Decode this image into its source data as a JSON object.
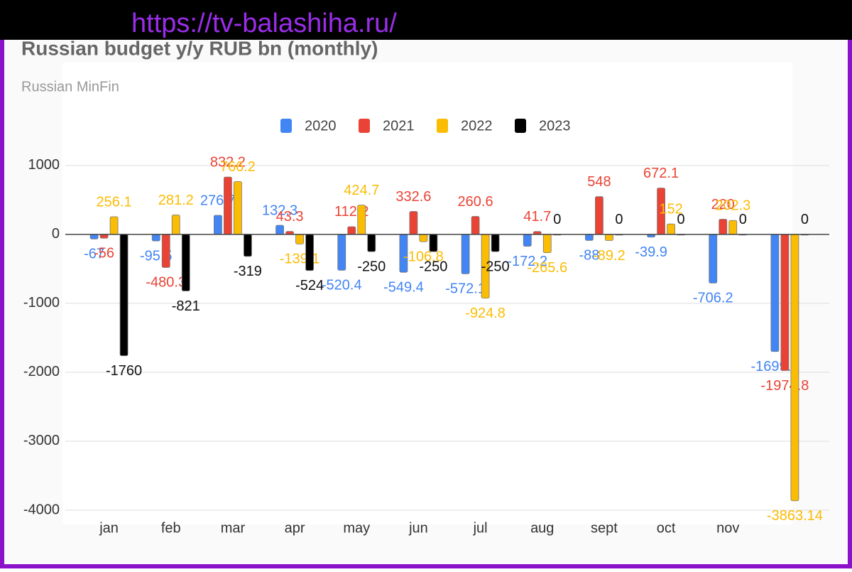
{
  "watermark": "https://tv-balashiha.ru/",
  "chart_data": {
    "type": "bar",
    "title": "Russian budget y/y RUB bn (monthly)",
    "subtitle": "Russian MinFin",
    "categories": [
      "jan",
      "feb",
      "mar",
      "apr",
      "may",
      "jun",
      "jul",
      "aug",
      "sept",
      "oct",
      "nov",
      null
    ],
    "series": [
      {
        "name": "2020",
        "color": "#4285f4",
        "values": [
          -67,
          -95.5,
          276.7,
          132.3,
          -520.4,
          -549.4,
          -572.1,
          -172.2,
          -88,
          -39.9,
          -706.2,
          -1699.6
        ]
      },
      {
        "name": "2021",
        "color": "#ea4335",
        "values": [
          -56,
          -480.3,
          832.2,
          43.3,
          112.2,
          332.6,
          260.6,
          41.7,
          548,
          672.1,
          220,
          -1974.8
        ]
      },
      {
        "name": "2022",
        "color": "#fbbc04",
        "values": [
          256.1,
          281.2,
          766.2,
          -139.1,
          424.7,
          -106.8,
          -924.8,
          -265.6,
          -89.2,
          152,
          202.3,
          -3863.14
        ]
      },
      {
        "name": "2023",
        "color": "#000000",
        "values": [
          -1760,
          -821,
          -319,
          -524,
          -250,
          -250,
          -250,
          0,
          0,
          0,
          0,
          0
        ]
      }
    ],
    "ylim": [
      -4000,
      1400
    ],
    "yticks": [
      -4000,
      -3000,
      -2000,
      -1000,
      0,
      1000
    ],
    "grid": true,
    "legend": "top"
  }
}
